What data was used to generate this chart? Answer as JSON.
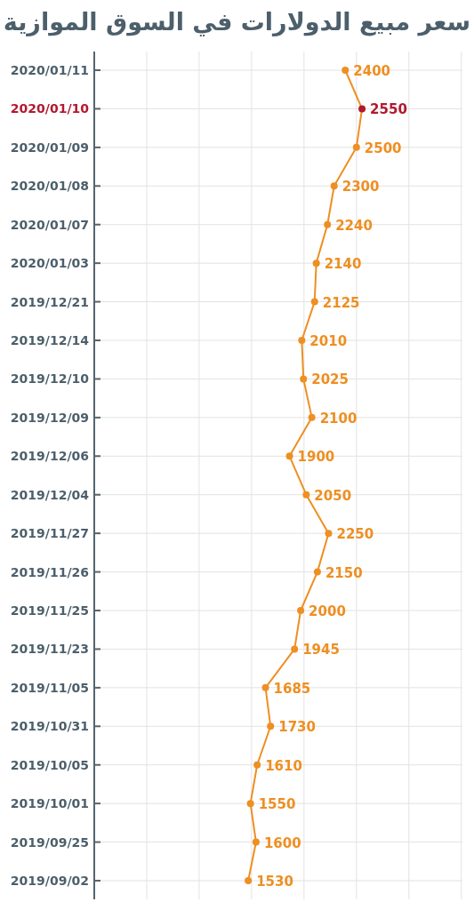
{
  "chart_data": {
    "type": "line",
    "orientation": "horizontal",
    "title": "سعر مبيع الدولارات في السوق الموازية",
    "categories": [
      "2020/01/11",
      "2020/01/10",
      "2020/01/09",
      "2020/01/08",
      "2020/01/07",
      "2020/01/03",
      "2019/12/21",
      "2019/12/14",
      "2019/12/10",
      "2019/12/09",
      "2019/12/06",
      "2019/12/04",
      "2019/11/27",
      "2019/11/26",
      "2019/11/25",
      "2019/11/23",
      "2019/11/05",
      "2019/10/31",
      "2019/10/05",
      "2019/10/01",
      "2019/09/25",
      "2019/09/02"
    ],
    "series": [
      {
        "color": "#ee8f22",
        "values": [
          2400,
          2550,
          2500,
          2300,
          2240,
          2140,
          2125,
          2010,
          2025,
          2100,
          1900,
          2050,
          2250,
          2150,
          2000,
          1945,
          1685,
          1730,
          1610,
          1550,
          1600,
          1530
        ],
        "colors": [
          "#ee8f22",
          "#b3182f",
          "#ee8f22",
          "#ee8f22",
          "#ee8f22",
          "#ee8f22",
          "#ee8f22",
          "#ee8f22",
          "#ee8f22",
          "#ee8f22",
          "#ee8f22",
          "#ee8f22",
          "#ee8f22",
          "#ee8f22",
          "#ee8f22",
          "#ee8f22",
          "#ee8f22",
          "#ee8f22",
          "#ee8f22",
          "#ee8f22",
          "#ee8f22",
          "#ee8f22"
        ]
      }
    ],
    "xlim": [
      150,
      3450
    ],
    "xticks": [
      {
        "value": 620,
        "label": null
      },
      {
        "value": 1090,
        "label": null
      },
      {
        "value": 1560,
        "label": null
      },
      {
        "value": 2030,
        "label": null
      },
      {
        "value": 2500,
        "label": null
      },
      {
        "value": 2970,
        "label": null
      },
      {
        "value": 3440,
        "label": null
      }
    ],
    "data_labels": true,
    "marker": "circle",
    "line_style": "solid",
    "grid": true,
    "tick_labels": "y"
  }
}
